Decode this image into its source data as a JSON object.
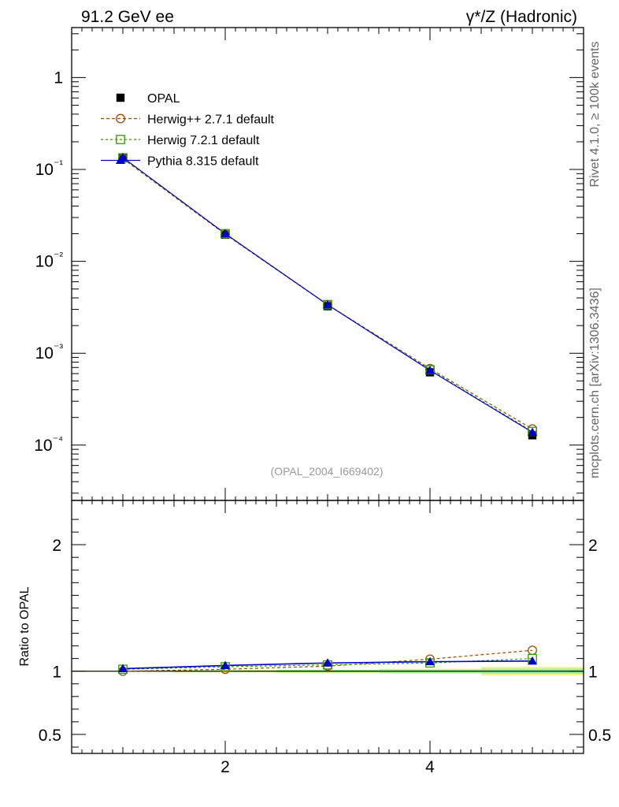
{
  "header": {
    "left_title": "91.2 GeV ee",
    "right_title": "γ*/Z (Hadronic)"
  },
  "side_labels": {
    "rivet": "Rivet 4.1.0, ≥ 100k events",
    "mcplots": "mcplots.cern.ch [arXiv:1306.3436]"
  },
  "analysis_tag": "(OPAL_2004_I669402)",
  "colors": {
    "opal": "#000000",
    "herwigpp": "#994c00",
    "herwig7": "#339900",
    "pythia": "#0000cc",
    "band_yellow": "#f4f48c",
    "band_green": "#99ee99"
  },
  "chart_data": [
    {
      "type": "line",
      "scale": "log",
      "xlim": [
        0.5,
        5.5
      ],
      "ylim": [
        2.5e-05,
        3.5
      ],
      "ytick_labels": [
        "1",
        "10⁻¹",
        "10⁻²",
        "10⁻³",
        "10⁻⁴"
      ],
      "yticks": [
        1,
        0.1,
        0.01,
        0.001,
        0.0001
      ],
      "x": [
        1,
        2,
        3,
        4,
        5
      ],
      "series": [
        {
          "name": "OPAL",
          "key": "opal",
          "marker": "filled-square",
          "values": [
            0.132,
            0.0195,
            0.00325,
            0.00062,
            0.000128
          ]
        },
        {
          "name": "Herwig++ 2.7.1 default",
          "key": "herwigpp",
          "marker": "open-circle",
          "values": [
            0.131,
            0.0197,
            0.00337,
            0.00068,
            0.00015
          ]
        },
        {
          "name": "Herwig 7.2.1 default",
          "key": "herwig7",
          "marker": "open-square",
          "values": [
            0.134,
            0.02,
            0.00338,
            0.00066,
            0.000141
          ]
        },
        {
          "name": "Pythia 8.315 default",
          "key": "pythia",
          "marker": "filled-triangle",
          "values": [
            0.135,
            0.02,
            0.00337,
            0.00065,
            0.000138
          ]
        }
      ]
    },
    {
      "type": "line",
      "ylabel": "Ratio to OPAL",
      "xlim": [
        0.5,
        5.5
      ],
      "ylim": [
        0.35,
        2.35
      ],
      "xtick_labels": [
        "2",
        "4"
      ],
      "xticks": [
        2,
        4
      ],
      "ytick_labels": [
        "0.5",
        "1",
        "2"
      ],
      "yticks": [
        0.5,
        1,
        2
      ],
      "x": [
        1,
        2,
        3,
        4,
        5
      ],
      "band": {
        "yellow_half_width": [
          0.005,
          0.01,
          0.015,
          0.02,
          0.035
        ],
        "green_half_width": [
          0.003,
          0.006,
          0.01,
          0.013,
          0.02
        ]
      },
      "series": [
        {
          "name": "Herwig++ 2.7.1 default",
          "key": "herwigpp",
          "marker": "open-circle",
          "values": [
            1.0,
            1.015,
            1.04,
            1.095,
            1.165
          ]
        },
        {
          "name": "Herwig 7.2.1 default",
          "key": "herwig7",
          "marker": "open-square",
          "values": [
            1.015,
            1.035,
            1.05,
            1.065,
            1.1
          ]
        },
        {
          "name": "Pythia 8.315 default",
          "key": "pythia",
          "marker": "filled-triangle",
          "values": [
            1.02,
            1.045,
            1.065,
            1.075,
            1.08
          ]
        }
      ]
    }
  ]
}
